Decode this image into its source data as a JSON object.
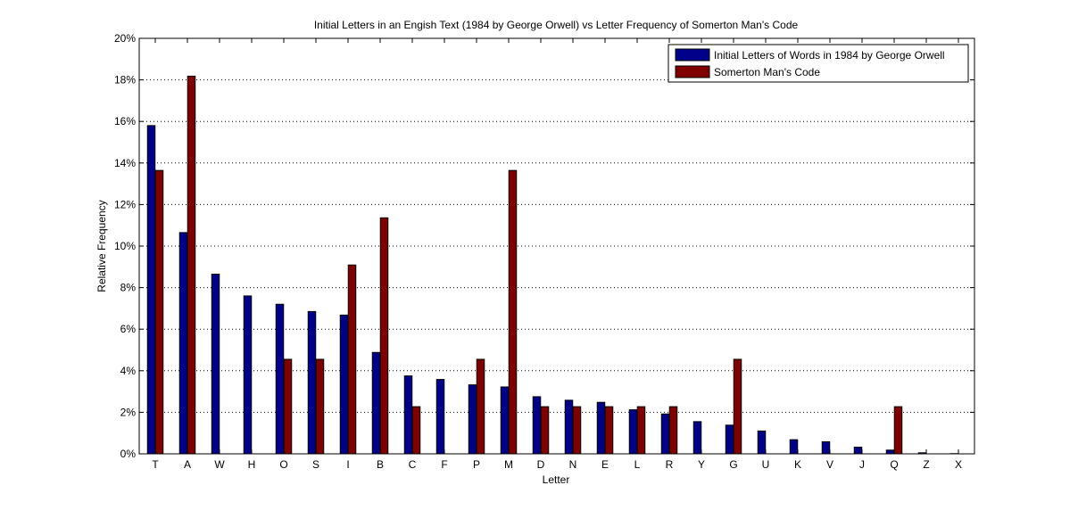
{
  "chart_data": {
    "type": "bar",
    "title": "Initial Letters in an Engish Text (1984 by George Orwell) vs Letter Frequency of Somerton Man's Code",
    "xlabel": "Letter",
    "ylabel": "Relative Frequency",
    "ylim": [
      0,
      0.2
    ],
    "yticks": [
      0,
      0.02,
      0.04,
      0.06,
      0.08,
      0.1,
      0.12,
      0.14,
      0.16,
      0.18,
      0.2
    ],
    "ytick_labels": [
      "0%",
      "2%",
      "4%",
      "6%",
      "8%",
      "10%",
      "12%",
      "14%",
      "16%",
      "18%",
      "20%"
    ],
    "grid": true,
    "legend_position": "top-right",
    "categories": [
      "T",
      "A",
      "W",
      "H",
      "O",
      "S",
      "I",
      "B",
      "C",
      "F",
      "P",
      "M",
      "D",
      "N",
      "E",
      "L",
      "R",
      "Y",
      "G",
      "U",
      "K",
      "V",
      "J",
      "Q",
      "Z",
      "X"
    ],
    "series": [
      {
        "name": "Initial Letters of Words in 1984 by George Orwell",
        "color": "#00008b",
        "values": [
          0.158,
          0.1065,
          0.0865,
          0.076,
          0.072,
          0.0685,
          0.0668,
          0.0488,
          0.0375,
          0.0358,
          0.0332,
          0.0322,
          0.0275,
          0.0258,
          0.0248,
          0.0212,
          0.0192,
          0.0155,
          0.0138,
          0.011,
          0.0068,
          0.0058,
          0.0032,
          0.0018,
          0.0005,
          0.0001
        ]
      },
      {
        "name": "Somerton Man's Code",
        "color": "#800000",
        "values": [
          0.1364,
          0.1818,
          0,
          0,
          0.0455,
          0.0455,
          0.0909,
          0.1136,
          0.0227,
          0,
          0.0455,
          0.1364,
          0.0227,
          0.0227,
          0.0227,
          0.0227,
          0.0227,
          0,
          0.0455,
          0,
          0,
          0,
          0,
          0.0227,
          0,
          0
        ]
      }
    ]
  }
}
